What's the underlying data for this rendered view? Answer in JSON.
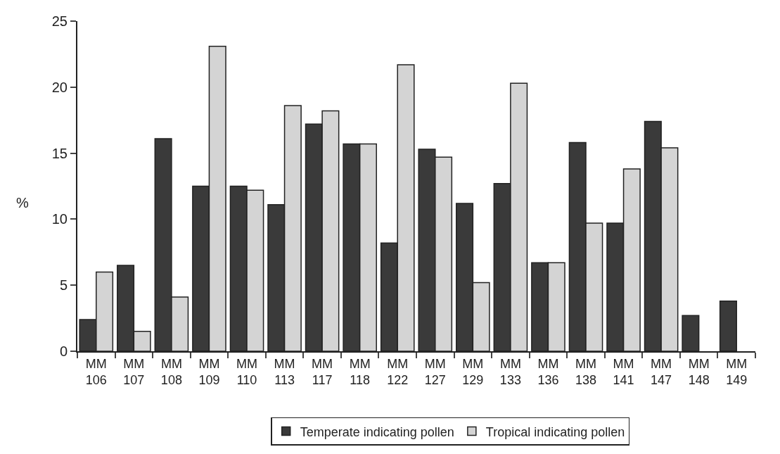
{
  "chart_data": {
    "type": "bar",
    "ylabel": "%",
    "categories": [
      "MM\n106",
      "MM\n107",
      "MM\n108",
      "MM\n109",
      "MM\n110",
      "MM\n113",
      "MM\n117",
      "MM\n118",
      "MM\n122",
      "MM\n127",
      "MM\n129",
      "MM\n133",
      "MM\n136",
      "MM\n138",
      "MM\n141",
      "MM\n147",
      "MM\n148",
      "MM\n149"
    ],
    "series": [
      {
        "name": "Temperate indicating pollen",
        "color": "#3a3a3a",
        "values": [
          2.4,
          6.5,
          16.1,
          12.5,
          12.5,
          11.1,
          17.2,
          15.7,
          8.2,
          15.3,
          11.2,
          12.7,
          6.7,
          15.8,
          9.7,
          17.4,
          2.7,
          3.8
        ]
      },
      {
        "name": "Tropical indicating pollen",
        "color": "#d4d4d4",
        "values": [
          6.0,
          1.5,
          4.1,
          23.1,
          12.2,
          18.6,
          18.2,
          15.7,
          21.7,
          14.7,
          5.2,
          20.3,
          6.7,
          9.7,
          13.8,
          15.4,
          null,
          null
        ]
      }
    ],
    "ylim": [
      0,
      25
    ],
    "yticks": [
      0,
      5,
      10,
      15,
      20,
      25
    ],
    "legend": "bottom"
  }
}
